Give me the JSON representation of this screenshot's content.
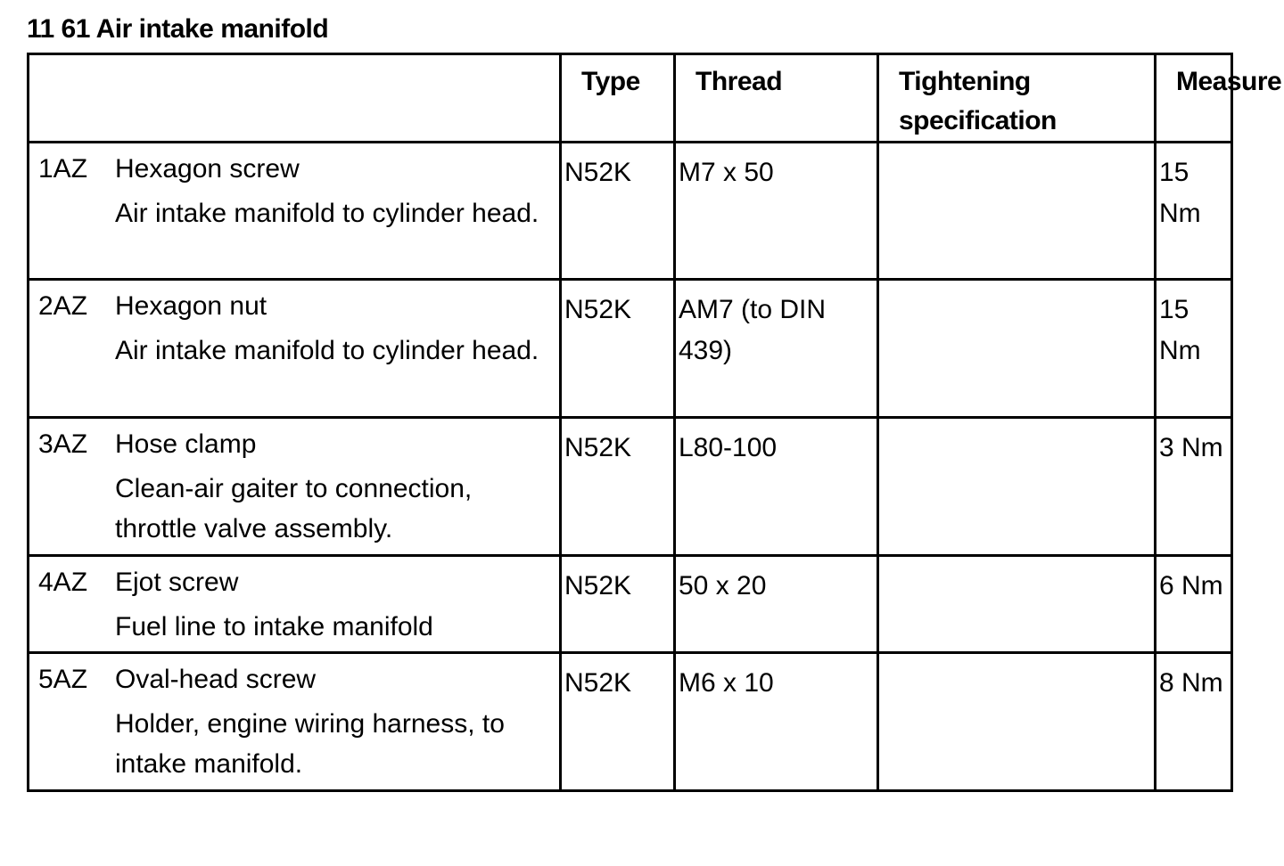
{
  "title": "11 61 Air intake manifold",
  "headers": {
    "type": "Type",
    "thread": "Thread",
    "tightening": "Tightening specification",
    "measure": "Measure"
  },
  "rows": [
    {
      "code": "1AZ",
      "name": "Hexagon screw",
      "description": "Air intake manifold to cylinder head.",
      "type": "N52K",
      "thread": "M7 x 50",
      "tightening": "",
      "measure": "15 Nm"
    },
    {
      "code": "2AZ",
      "name": "Hexagon nut",
      "description": "Air intake manifold to cylinder head.",
      "type": "N52K",
      "thread": "AM7 (to DIN 439)",
      "tightening": "",
      "measure": "15 Nm"
    },
    {
      "code": "3AZ",
      "name": "Hose clamp",
      "description": "Clean-air gaiter to connection, throttle valve assembly.",
      "type": "N52K",
      "thread": "L80-100",
      "tightening": "",
      "measure": "3 Nm"
    },
    {
      "code": "4AZ",
      "name": "Ejot screw",
      "description": "Fuel line to intake manifold",
      "type": "N52K",
      "thread": "50 x 20",
      "tightening": "",
      "measure": "6 Nm"
    },
    {
      "code": "5AZ",
      "name": "Oval-head screw",
      "description": "Holder, engine wiring harness, to intake manifold.",
      "type": "N52K",
      "thread": "M6 x 10",
      "tightening": "",
      "measure": "8 Nm"
    }
  ]
}
